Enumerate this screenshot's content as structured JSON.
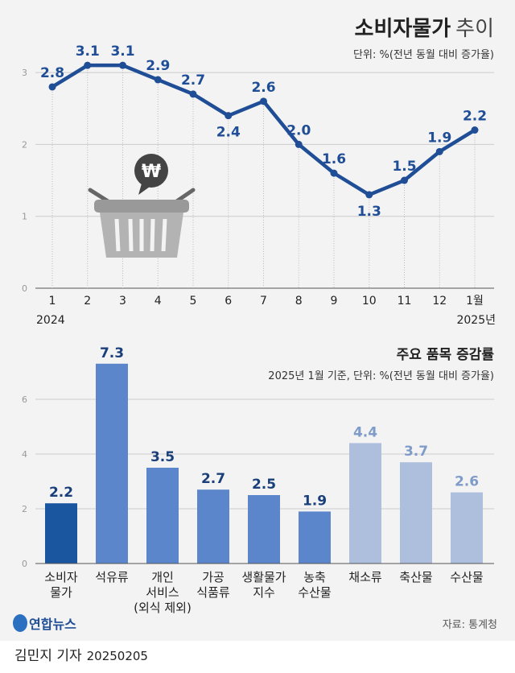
{
  "chart_data": [
    {
      "type": "line",
      "title": "소비자물가",
      "title_suffix": "추이",
      "subtitle": "단위: %(전년 동월 대비 증가율)",
      "categories": [
        "1",
        "2",
        "3",
        "4",
        "5",
        "6",
        "7",
        "8",
        "9",
        "10",
        "11",
        "12",
        "1월"
      ],
      "year_labels": {
        "start": "2024",
        "end": "2025년"
      },
      "values": [
        2.8,
        3.1,
        3.1,
        2.9,
        2.7,
        2.4,
        2.6,
        2.0,
        1.6,
        1.3,
        1.5,
        1.9,
        2.2
      ],
      "value_labels": [
        "2.8",
        "3.1",
        "3.1",
        "2.9",
        "2.7",
        "2.4",
        "2.6",
        "2.0",
        "1.6",
        "1.3",
        "1.5",
        "1.9",
        "2.2"
      ],
      "ylim": [
        0,
        3
      ],
      "yticks": [
        "0",
        "1",
        "2",
        "3"
      ],
      "grid": true,
      "color": "#1f4e96"
    },
    {
      "type": "bar",
      "title": "주요 품목 증감률",
      "subtitle": "2025년 1월 기준, 단위: %(전년 동월 대비 증가율)",
      "categories": [
        [
          "소비자",
          "물가"
        ],
        [
          "석유류"
        ],
        [
          "개인",
          "서비스",
          "(외식 제외)"
        ],
        [
          "가공",
          "식품류"
        ],
        [
          "생활물가",
          "지수"
        ],
        [
          "농축",
          "수산물"
        ],
        [
          "채소류"
        ],
        [
          "축산물"
        ],
        [
          "수산물"
        ]
      ],
      "values": [
        2.2,
        7.3,
        3.5,
        2.7,
        2.5,
        1.9,
        4.4,
        3.7,
        2.6
      ],
      "value_labels": [
        "2.2",
        "7.3",
        "3.5",
        "2.7",
        "2.5",
        "1.9",
        "4.4",
        "3.7",
        "2.6"
      ],
      "bar_colors": [
        "#1a55a0",
        "#5b86cb",
        "#5b86cb",
        "#5b86cb",
        "#5b86cb",
        "#5b86cb",
        "#aebfdd",
        "#aebfdd",
        "#aebfdd"
      ],
      "label_colors": [
        "#1a3f7a",
        "#1a3f7a",
        "#1a3f7a",
        "#1a3f7a",
        "#1a3f7a",
        "#1a3f7a",
        "#7f9cc9",
        "#7f9cc9",
        "#7f9cc9"
      ],
      "ylim": [
        0,
        7.6
      ],
      "yticks": [
        "0",
        "2",
        "4",
        "6"
      ],
      "grid": true
    }
  ],
  "logo": "연합뉴스",
  "source": "자료: 통계청",
  "footer": {
    "author": "김민지 기자",
    "date": "20250205"
  }
}
